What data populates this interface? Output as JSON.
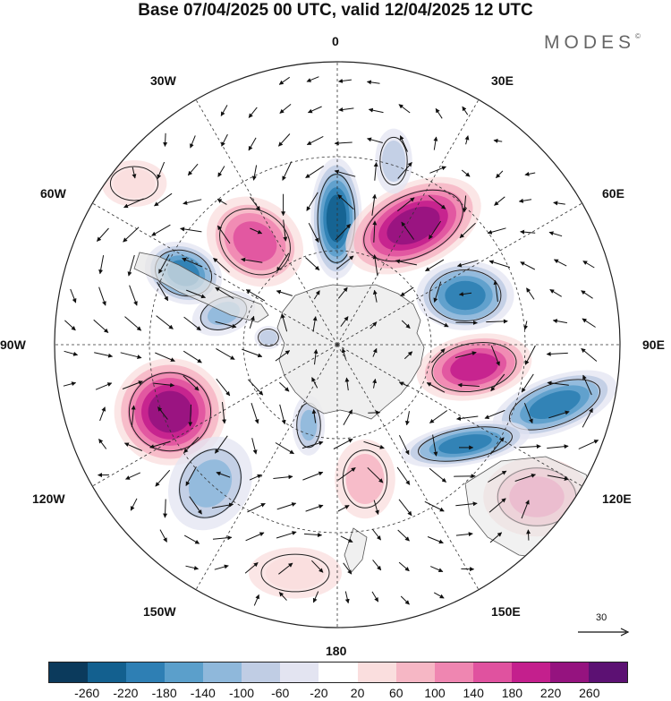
{
  "title": "Base 07/04/2025 00 UTC, valid 12/04/2025 12 UTC",
  "brand": "MODES",
  "brand_mark": "©",
  "longitude_labels": {
    "lon_0": "0",
    "lon_30e": "30E",
    "lon_60e": "60E",
    "lon_90e": "90E",
    "lon_120e": "120E",
    "lon_150e": "150E",
    "lon_180": "180",
    "lon_150w": "150W",
    "lon_120w": "120W",
    "lon_90w": "90W",
    "lon_60w": "60W",
    "lon_30w": "30W"
  },
  "reference_vector": {
    "label": "30"
  },
  "colorbar": {
    "colors": [
      "#0b3a5c",
      "#13608f",
      "#2e7fb4",
      "#5b9fcb",
      "#8fb8db",
      "#c0cde4",
      "#e3e4f1",
      "#ffffff",
      "#fadede",
      "#f6b7c5",
      "#ef86b1",
      "#e0529f",
      "#c41f8d",
      "#95137f",
      "#5c1173"
    ],
    "tick_labels": [
      "-260",
      "-220",
      "-180",
      "-140",
      "-100",
      "-60",
      "-20",
      "20",
      "60",
      "100",
      "140",
      "180",
      "220",
      "260"
    ]
  },
  "anomaly_centers": [
    {
      "sign": "negative",
      "value": -240
    },
    {
      "sign": "positive",
      "value": 250
    },
    {
      "sign": "negative",
      "value": -200
    },
    {
      "sign": "positive",
      "value": 210
    },
    {
      "sign": "negative",
      "value": -200
    },
    {
      "sign": "positive",
      "value": 120
    },
    {
      "sign": "positive",
      "value": 80
    },
    {
      "sign": "negative",
      "value": -100
    },
    {
      "sign": "negative",
      "value": -200
    },
    {
      "sign": "positive",
      "value": 240
    },
    {
      "sign": "negative",
      "value": -120
    },
    {
      "sign": "negative",
      "value": -180
    },
    {
      "sign": "positive",
      "value": 170
    },
    {
      "sign": "negative",
      "value": -130
    },
    {
      "sign": "negative",
      "value": -60
    },
    {
      "sign": "positive",
      "value": 60
    },
    {
      "sign": "negative",
      "value": -60
    },
    {
      "sign": "positive",
      "value": 60
    }
  ]
}
